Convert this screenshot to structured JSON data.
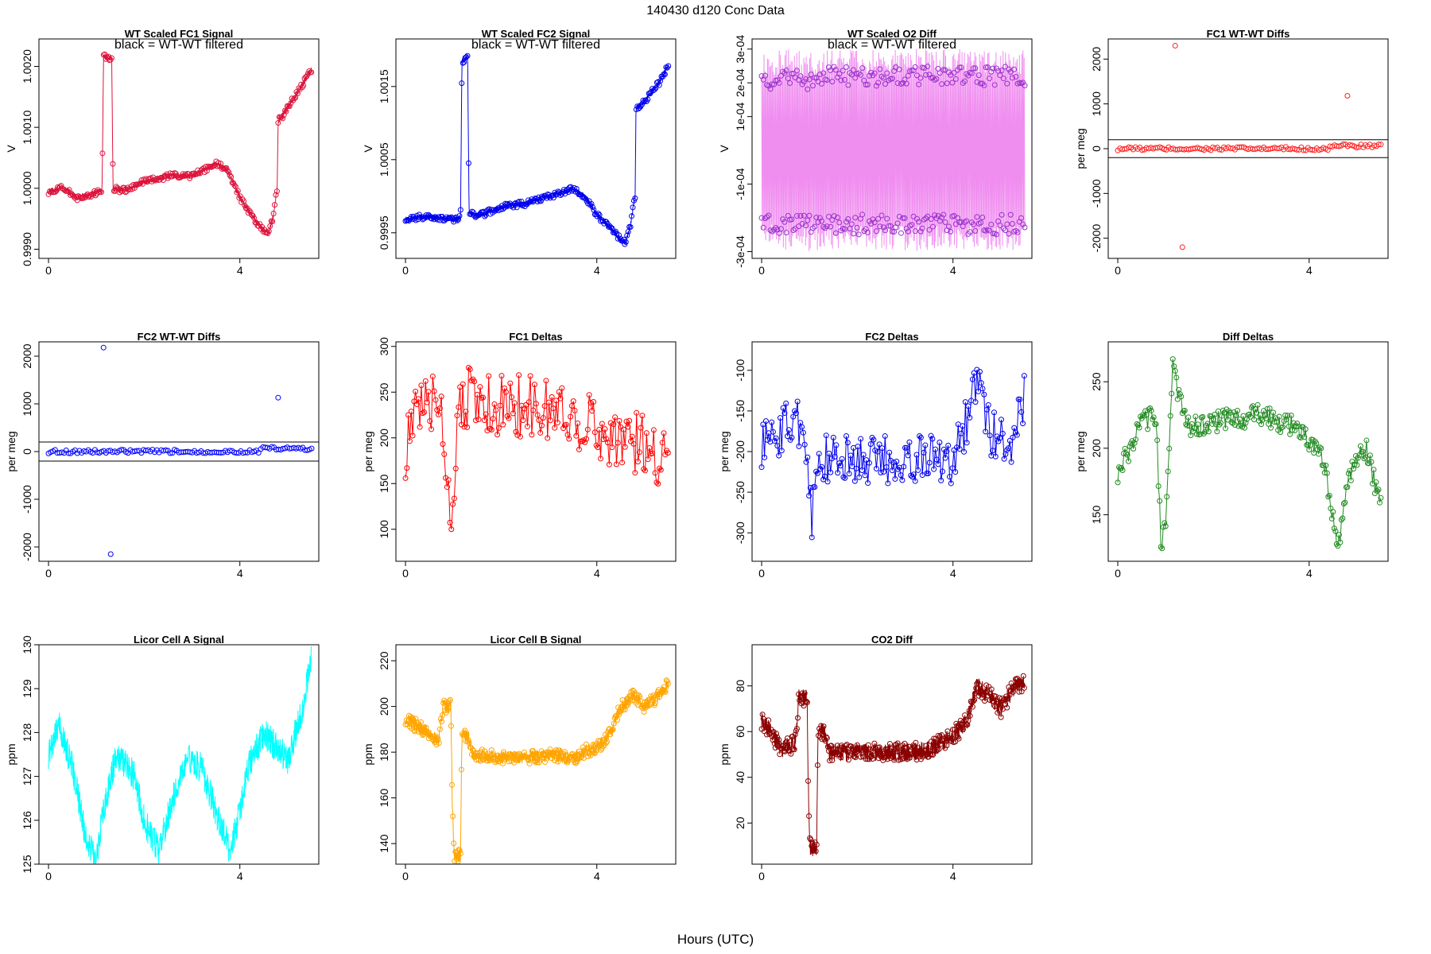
{
  "page_title": "140430   d120   Conc Data",
  "x_axis_label": "Hours (UTC)",
  "annotation_text": "black = WT-WT filtered",
  "chart_data": [
    {
      "id": "p1",
      "type": "line",
      "title": "WT Scaled FC1 Signal",
      "ylabel": "V",
      "xlim": [
        -0.2,
        5.65
      ],
      "ylim": [
        0.99885,
        1.00245
      ],
      "xticks": [
        0,
        4
      ],
      "xticklabels": [
        "0",
        "4"
      ],
      "yticks": [
        0.999,
        1.0,
        1.001,
        1.002
      ],
      "yticklabels": [
        "0.9990",
        "1.0000",
        "1.0010",
        "1.0020"
      ],
      "color": "#dc143c",
      "annotation": true,
      "marker_step": 4,
      "points": [
        [
          0.0,
          0.99995
        ],
        [
          0.3,
          1.0
        ],
        [
          0.6,
          0.99985
        ],
        [
          0.9,
          0.9999
        ],
        [
          1.12,
          0.99998
        ],
        [
          1.15,
          1.00215
        ],
        [
          1.32,
          1.00215
        ],
        [
          1.35,
          0.99998
        ],
        [
          1.6,
          0.99998
        ],
        [
          2.0,
          1.0001
        ],
        [
          2.5,
          1.0002
        ],
        [
          3.0,
          1.0002
        ],
        [
          3.5,
          1.0004
        ],
        [
          3.75,
          1.0003
        ],
        [
          4.0,
          0.99985
        ],
        [
          4.3,
          0.9995
        ],
        [
          4.5,
          0.9993
        ],
        [
          4.6,
          0.99925
        ],
        [
          4.7,
          0.99955
        ],
        [
          4.78,
          1.0
        ],
        [
          4.8,
          1.0011
        ],
        [
          4.9,
          1.0012
        ],
        [
          5.1,
          1.00145
        ],
        [
          5.3,
          1.0017
        ],
        [
          5.5,
          1.00195
        ]
      ],
      "noise": 5e-05
    },
    {
      "id": "p2",
      "type": "line",
      "title": "WT Scaled FC2 Signal",
      "ylabel": "V",
      "xlim": [
        -0.2,
        5.65
      ],
      "ylim": [
        0.99915,
        1.00215
      ],
      "xticks": [
        0,
        4
      ],
      "xticklabels": [
        "0",
        "4"
      ],
      "yticks": [
        0.9995,
        1.0005,
        1.0015
      ],
      "yticklabels": [
        "0.9995",
        "1.0005",
        "1.0015"
      ],
      "color": "#0000ee",
      "annotation": true,
      "marker_step": 4,
      "points": [
        [
          0.0,
          0.9997
        ],
        [
          0.5,
          0.99972
        ],
        [
          1.0,
          0.99968
        ],
        [
          1.15,
          0.9997
        ],
        [
          1.18,
          1.00185
        ],
        [
          1.3,
          1.0019
        ],
        [
          1.33,
          0.99975
        ],
        [
          1.6,
          0.99975
        ],
        [
          2.0,
          0.99985
        ],
        [
          2.5,
          0.9999
        ],
        [
          3.0,
          1.0
        ],
        [
          3.5,
          1.0001
        ],
        [
          3.75,
          1.0
        ],
        [
          4.0,
          0.99975
        ],
        [
          4.3,
          0.99955
        ],
        [
          4.5,
          0.9994
        ],
        [
          4.6,
          0.99935
        ],
        [
          4.7,
          0.9996
        ],
        [
          4.8,
          1.0
        ],
        [
          4.82,
          1.0012
        ],
        [
          5.0,
          1.0013
        ],
        [
          5.3,
          1.00155
        ],
        [
          5.5,
          1.0018
        ]
      ],
      "noise": 4e-05
    },
    {
      "id": "p3",
      "type": "scatter",
      "title": "WT Scaled O2 Diff",
      "ylabel": "V",
      "xlim": [
        -0.2,
        5.65
      ],
      "ylim": [
        -0.00032,
        0.00033
      ],
      "xticks": [
        0,
        4
      ],
      "xticklabels": [
        "0",
        "4"
      ],
      "yticks": [
        -0.0003,
        -0.0001,
        0.0001,
        0.0002,
        0.0003
      ],
      "yticklabels": [
        "-3e-04",
        "-1e-04",
        "1e-04",
        "2e-04",
        "3e-04"
      ],
      "color": "#ee82ee",
      "marker_color": "#9932cc",
      "annotation": true,
      "upper_level": 0.00022,
      "lower_level": -0.00022,
      "x_end": 5.5,
      "count": 150
    },
    {
      "id": "p4",
      "type": "scatter",
      "title": "FC1 WT-WT Diffs",
      "ylabel": "per meg",
      "xlim": [
        -0.2,
        5.65
      ],
      "ylim": [
        -2450,
        2450
      ],
      "xticks": [
        0,
        4
      ],
      "xticklabels": [
        "0",
        "4"
      ],
      "yticks": [
        -2000,
        -1000,
        0,
        1000,
        2000
      ],
      "yticklabels": [
        "-2000",
        "-1000",
        "0",
        "1000",
        "2000"
      ],
      "color": "#ff2020",
      "hlines": [
        200,
        -200
      ],
      "outliers": [
        [
          1.2,
          2300
        ],
        [
          1.35,
          -2200
        ],
        [
          4.8,
          1180
        ]
      ],
      "x_end": 5.5,
      "count": 120,
      "spread": 40
    },
    {
      "id": "p5",
      "type": "scatter",
      "title": "FC2 WT-WT Diffs",
      "ylabel": "per meg",
      "xlim": [
        -0.2,
        5.65
      ],
      "ylim": [
        -2300,
        2300
      ],
      "xticks": [
        0,
        4
      ],
      "xticklabels": [
        "0",
        "4"
      ],
      "yticks": [
        -2000,
        -1000,
        0,
        1000,
        2000
      ],
      "yticklabels": [
        "-2000",
        "-1000",
        "0",
        "1000",
        "2000"
      ],
      "color": "#0000ff",
      "hlines": [
        200,
        -200
      ],
      "outliers": [
        [
          1.15,
          2180
        ],
        [
          1.3,
          -2150
        ],
        [
          4.8,
          1130
        ]
      ],
      "x_end": 5.5,
      "count": 120,
      "spread": 40
    },
    {
      "id": "p6",
      "type": "line",
      "title": "FC1 Deltas",
      "ylabel": "per meg",
      "xlim": [
        -0.2,
        5.65
      ],
      "ylim": [
        65,
        305
      ],
      "xticks": [
        0,
        4
      ],
      "xticklabels": [
        "0",
        "4"
      ],
      "yticks": [
        100,
        150,
        200,
        250,
        300
      ],
      "yticklabels": [
        "100",
        "150",
        "200",
        "250",
        "300"
      ],
      "color": "#ff0000",
      "marker_step": 1,
      "points": [
        [
          0.0,
          190
        ],
        [
          0.3,
          230
        ],
        [
          0.6,
          240
        ],
        [
          0.8,
          220
        ],
        [
          0.9,
          130
        ],
        [
          1.0,
          120
        ],
        [
          1.1,
          250
        ],
        [
          1.5,
          240
        ],
        [
          2.0,
          235
        ],
        [
          2.5,
          235
        ],
        [
          3.0,
          230
        ],
        [
          3.5,
          225
        ],
        [
          4.0,
          210
        ],
        [
          4.5,
          200
        ],
        [
          5.0,
          190
        ],
        [
          5.5,
          180
        ]
      ],
      "noise": 35,
      "jitter_step": 0.03
    },
    {
      "id": "p7",
      "type": "line",
      "title": "FC2 Deltas",
      "ylabel": "per meg",
      "xlim": [
        -0.2,
        5.65
      ],
      "ylim": [
        -335,
        -65
      ],
      "xticks": [
        0,
        4
      ],
      "xticklabels": [
        "0",
        "4"
      ],
      "yticks": [
        -300,
        -250,
        -200,
        -150,
        -100
      ],
      "yticklabels": [
        "-300",
        "-250",
        "-200",
        "-150",
        "-100"
      ],
      "color": "#0000ee",
      "marker_step": 1,
      "points": [
        [
          0.0,
          -190
        ],
        [
          0.3,
          -180
        ],
        [
          0.7,
          -160
        ],
        [
          0.9,
          -170
        ],
        [
          1.05,
          -280
        ],
        [
          1.2,
          -210
        ],
        [
          2.0,
          -210
        ],
        [
          3.0,
          -210
        ],
        [
          3.5,
          -205
        ],
        [
          4.0,
          -210
        ],
        [
          4.3,
          -160
        ],
        [
          4.5,
          -110
        ],
        [
          4.8,
          -180
        ],
        [
          5.2,
          -190
        ],
        [
          5.5,
          -130
        ]
      ],
      "noise": 30,
      "jitter_step": 0.03
    },
    {
      "id": "p8",
      "type": "line",
      "title": "Diff Deltas",
      "ylabel": "per meg",
      "xlim": [
        -0.2,
        5.65
      ],
      "ylim": [
        115,
        280
      ],
      "xticks": [
        0,
        4
      ],
      "xticklabels": [
        "0",
        "4"
      ],
      "yticks": [
        150,
        200,
        250
      ],
      "yticklabels": [
        "150",
        "200",
        "250"
      ],
      "color": "#228b22",
      "marker_step": 1,
      "points": [
        [
          0.0,
          182
        ],
        [
          0.2,
          195
        ],
        [
          0.5,
          220
        ],
        [
          0.8,
          225
        ],
        [
          0.9,
          130
        ],
        [
          1.0,
          140
        ],
        [
          1.15,
          270
        ],
        [
          1.25,
          240
        ],
        [
          1.5,
          215
        ],
        [
          2.0,
          220
        ],
        [
          3.0,
          225
        ],
        [
          3.8,
          215
        ],
        [
          4.0,
          205
        ],
        [
          4.3,
          190
        ],
        [
          4.5,
          150
        ],
        [
          4.6,
          125
        ],
        [
          4.8,
          170
        ],
        [
          5.0,
          195
        ],
        [
          5.2,
          200
        ],
        [
          5.5,
          155
        ]
      ],
      "noise": 8,
      "jitter_step": 0.025
    },
    {
      "id": "p9",
      "type": "line",
      "title": "Licor Cell A Signal",
      "ylabel": "ppm",
      "xlim": [
        -0.2,
        5.65
      ],
      "ylim": [
        125,
        130
      ],
      "xticks": [
        0,
        4
      ],
      "xticklabels": [
        "0",
        "4"
      ],
      "yticks": [
        125,
        126,
        127,
        128,
        129,
        130
      ],
      "yticklabels": [
        "125",
        "126",
        "127",
        "128",
        "129",
        "130"
      ],
      "color": "#00ffff",
      "marker_step": 0,
      "points": [
        [
          0.0,
          127.5
        ],
        [
          0.2,
          128.2
        ],
        [
          0.5,
          127.2
        ],
        [
          0.8,
          125.5
        ],
        [
          1.0,
          125.2
        ],
        [
          1.2,
          126.5
        ],
        [
          1.4,
          127.4
        ],
        [
          1.6,
          127.3
        ],
        [
          1.8,
          127.0
        ],
        [
          2.0,
          126.0
        ],
        [
          2.3,
          125.3
        ],
        [
          2.6,
          126.5
        ],
        [
          2.9,
          127.4
        ],
        [
          3.2,
          127.2
        ],
        [
          3.5,
          126.2
        ],
        [
          3.8,
          125.3
        ],
        [
          4.0,
          126.2
        ],
        [
          4.2,
          127.3
        ],
        [
          4.5,
          128.0
        ],
        [
          4.8,
          127.6
        ],
        [
          5.0,
          127.4
        ],
        [
          5.3,
          128.5
        ],
        [
          5.5,
          129.7
        ]
      ],
      "noise": 0.35
    },
    {
      "id": "p10",
      "type": "line",
      "title": "Licor Cell B Signal",
      "ylabel": "ppm",
      "xlim": [
        -0.2,
        5.65
      ],
      "ylim": [
        131,
        227
      ],
      "xticks": [
        0,
        4
      ],
      "xticklabels": [
        "0",
        "4"
      ],
      "yticks": [
        140,
        160,
        180,
        200,
        220
      ],
      "yticklabels": [
        "140",
        "160",
        "180",
        "200",
        "220"
      ],
      "color": "#ffa500",
      "marker_step": 3,
      "points": [
        [
          0.0,
          195
        ],
        [
          0.2,
          192
        ],
        [
          0.5,
          188
        ],
        [
          0.7,
          185
        ],
        [
          0.78,
          200
        ],
        [
          0.95,
          200
        ],
        [
          0.98,
          155
        ],
        [
          1.02,
          135
        ],
        [
          1.15,
          135
        ],
        [
          1.18,
          187
        ],
        [
          1.32,
          187
        ],
        [
          1.4,
          179
        ],
        [
          1.8,
          178
        ],
        [
          2.0,
          178
        ],
        [
          2.5,
          177
        ],
        [
          3.0,
          179
        ],
        [
          3.5,
          177
        ],
        [
          3.7,
          180
        ],
        [
          4.0,
          182
        ],
        [
          4.3,
          188
        ],
        [
          4.5,
          200
        ],
        [
          4.8,
          205
        ],
        [
          5.0,
          200
        ],
        [
          5.3,
          205
        ],
        [
          5.5,
          210
        ]
      ],
      "noise": 3
    },
    {
      "id": "p11",
      "type": "line",
      "title": "CO2 Diff",
      "ylabel": "ppm",
      "xlim": [
        -0.2,
        5.65
      ],
      "ylim": [
        2,
        98
      ],
      "xticks": [
        0,
        4
      ],
      "xticklabels": [
        "0",
        "4"
      ],
      "yticks": [
        20,
        40,
        60,
        80
      ],
      "yticklabels": [
        "20",
        "40",
        "60",
        "80"
      ],
      "color": "#8b0000",
      "marker_step": 3,
      "points": [
        [
          0.0,
          65
        ],
        [
          0.2,
          60
        ],
        [
          0.4,
          52
        ],
        [
          0.7,
          55
        ],
        [
          0.78,
          75
        ],
        [
          0.95,
          75
        ],
        [
          0.98,
          30
        ],
        [
          1.02,
          9
        ],
        [
          1.15,
          9
        ],
        [
          1.18,
          60
        ],
        [
          1.32,
          60
        ],
        [
          1.4,
          51
        ],
        [
          2.0,
          51
        ],
        [
          2.5,
          51
        ],
        [
          3.0,
          51
        ],
        [
          3.5,
          52
        ],
        [
          3.7,
          55
        ],
        [
          4.0,
          58
        ],
        [
          4.3,
          65
        ],
        [
          4.5,
          80
        ],
        [
          4.8,
          75
        ],
        [
          5.0,
          70
        ],
        [
          5.3,
          80
        ],
        [
          5.5,
          82
        ]
      ],
      "noise": 4
    }
  ]
}
